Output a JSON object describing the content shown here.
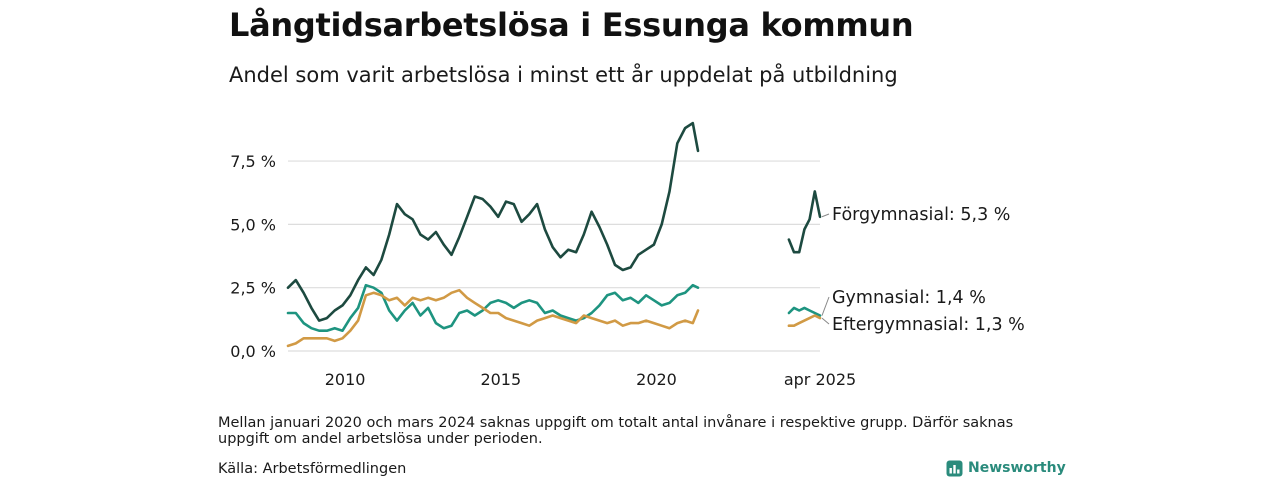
{
  "header": {
    "title": "Långtidsarbetslösa i Essunga kommun",
    "subtitle": "Andel som varit arbetslösa i minst ett år uppdelat på utbildning"
  },
  "footer": {
    "note": "Mellan januari 2020 och mars 2024 saknas uppgift om totalt antal invånare i respektive grupp. Därför saknas uppgift om andel arbetslösa under perioden.",
    "source": "Källa: Arbetsförmedlingen",
    "brand": "Newsworthy"
  },
  "colors": {
    "forgymnasial": "#1d4a40",
    "gymnasial": "#1e9480",
    "eftergymnasial": "#d19a45",
    "grid": "#dddddd",
    "brand": "#2a8b7c"
  },
  "icons": {
    "brand": "bar-chart-logo-icon"
  },
  "chart_data": {
    "type": "line",
    "x_axis": {
      "domain": [
        "2008-03",
        "2025-04"
      ],
      "ticks": [
        {
          "label": "2010",
          "value": "2010-01"
        },
        {
          "label": "2015",
          "value": "2015-01"
        },
        {
          "label": "2020",
          "value": "2020-01"
        },
        {
          "label": "apr 2025",
          "value": "2025-04"
        }
      ]
    },
    "y_axis": {
      "range": [
        0,
        9.2
      ],
      "ticks": [
        {
          "label": "0,0 %",
          "value": 0
        },
        {
          "label": "2,5 %",
          "value": 2.5
        },
        {
          "label": "5,0 %",
          "value": 5.0
        },
        {
          "label": "7,5 %",
          "value": 7.5
        }
      ],
      "grid": true
    },
    "legend": "direct labels at right end of lines",
    "series": [
      {
        "key": "forgymnasial",
        "name": "Förgymnasial",
        "end_label": "Förgymnasial: 5,3 %",
        "segments": [
          [
            [
              "2008-03",
              2.5
            ],
            [
              "2008-06",
              2.8
            ],
            [
              "2008-09",
              2.3
            ],
            [
              "2008-12",
              1.7
            ],
            [
              "2009-03",
              1.2
            ],
            [
              "2009-06",
              1.3
            ],
            [
              "2009-09",
              1.6
            ],
            [
              "2009-12",
              1.8
            ],
            [
              "2010-03",
              2.2
            ],
            [
              "2010-06",
              2.8
            ],
            [
              "2010-09",
              3.3
            ],
            [
              "2010-12",
              3.0
            ],
            [
              "2011-03",
              3.6
            ],
            [
              "2011-06",
              4.6
            ],
            [
              "2011-09",
              5.8
            ],
            [
              "2011-12",
              5.4
            ],
            [
              "2012-03",
              5.2
            ],
            [
              "2012-06",
              4.6
            ],
            [
              "2012-09",
              4.4
            ],
            [
              "2012-12",
              4.7
            ],
            [
              "2013-03",
              4.2
            ],
            [
              "2013-06",
              3.8
            ],
            [
              "2013-09",
              4.5
            ],
            [
              "2013-12",
              5.3
            ],
            [
              "2014-03",
              6.1
            ],
            [
              "2014-06",
              6.0
            ],
            [
              "2014-09",
              5.7
            ],
            [
              "2014-12",
              5.3
            ],
            [
              "2015-03",
              5.9
            ],
            [
              "2015-06",
              5.8
            ],
            [
              "2015-09",
              5.1
            ],
            [
              "2015-12",
              5.4
            ],
            [
              "2016-03",
              5.8
            ],
            [
              "2016-06",
              4.8
            ],
            [
              "2016-09",
              4.1
            ],
            [
              "2016-12",
              3.7
            ],
            [
              "2017-03",
              4.0
            ],
            [
              "2017-06",
              3.9
            ],
            [
              "2017-09",
              4.6
            ],
            [
              "2017-12",
              5.5
            ],
            [
              "2018-03",
              4.9
            ],
            [
              "2018-06",
              4.2
            ],
            [
              "2018-09",
              3.4
            ],
            [
              "2018-12",
              3.2
            ],
            [
              "2019-03",
              3.3
            ],
            [
              "2019-06",
              3.8
            ],
            [
              "2019-09",
              4.0
            ],
            [
              "2019-12",
              4.2
            ],
            [
              "2020-03",
              5.0
            ],
            [
              "2020-06",
              6.3
            ],
            [
              "2020-09",
              8.2
            ],
            [
              "2020-12",
              8.8
            ],
            [
              "2021-03",
              9.0
            ],
            [
              "2021-05",
              7.9
            ]
          ],
          [
            [
              "2024-04",
              4.4
            ],
            [
              "2024-06",
              3.9
            ],
            [
              "2024-08",
              3.9
            ],
            [
              "2024-10",
              4.8
            ],
            [
              "2024-12",
              5.2
            ],
            [
              "2025-02",
              6.3
            ],
            [
              "2025-04",
              5.3
            ]
          ]
        ]
      },
      {
        "key": "gymnasial",
        "name": "Gymnasial",
        "end_label": "Gymnasial: 1,4 %",
        "segments": [
          [
            [
              "2008-03",
              1.5
            ],
            [
              "2008-06",
              1.5
            ],
            [
              "2008-09",
              1.1
            ],
            [
              "2008-12",
              0.9
            ],
            [
              "2009-03",
              0.8
            ],
            [
              "2009-06",
              0.8
            ],
            [
              "2009-09",
              0.9
            ],
            [
              "2009-12",
              0.8
            ],
            [
              "2010-03",
              1.3
            ],
            [
              "2010-06",
              1.7
            ],
            [
              "2010-09",
              2.6
            ],
            [
              "2010-12",
              2.5
            ],
            [
              "2011-03",
              2.3
            ],
            [
              "2011-06",
              1.6
            ],
            [
              "2011-09",
              1.2
            ],
            [
              "2011-12",
              1.6
            ],
            [
              "2012-03",
              1.9
            ],
            [
              "2012-06",
              1.4
            ],
            [
              "2012-09",
              1.7
            ],
            [
              "2012-12",
              1.1
            ],
            [
              "2013-03",
              0.9
            ],
            [
              "2013-06",
              1.0
            ],
            [
              "2013-09",
              1.5
            ],
            [
              "2013-12",
              1.6
            ],
            [
              "2014-03",
              1.4
            ],
            [
              "2014-06",
              1.6
            ],
            [
              "2014-09",
              1.9
            ],
            [
              "2014-12",
              2.0
            ],
            [
              "2015-03",
              1.9
            ],
            [
              "2015-06",
              1.7
            ],
            [
              "2015-09",
              1.9
            ],
            [
              "2015-12",
              2.0
            ],
            [
              "2016-03",
              1.9
            ],
            [
              "2016-06",
              1.5
            ],
            [
              "2016-09",
              1.6
            ],
            [
              "2016-12",
              1.4
            ],
            [
              "2017-03",
              1.3
            ],
            [
              "2017-06",
              1.2
            ],
            [
              "2017-09",
              1.3
            ],
            [
              "2017-12",
              1.5
            ],
            [
              "2018-03",
              1.8
            ],
            [
              "2018-06",
              2.2
            ],
            [
              "2018-09",
              2.3
            ],
            [
              "2018-12",
              2.0
            ],
            [
              "2019-03",
              2.1
            ],
            [
              "2019-06",
              1.9
            ],
            [
              "2019-09",
              2.2
            ],
            [
              "2019-12",
              2.0
            ],
            [
              "2020-03",
              1.8
            ],
            [
              "2020-06",
              1.9
            ],
            [
              "2020-09",
              2.2
            ],
            [
              "2020-12",
              2.3
            ],
            [
              "2021-03",
              2.6
            ],
            [
              "2021-05",
              2.5
            ]
          ],
          [
            [
              "2024-04",
              1.5
            ],
            [
              "2024-06",
              1.7
            ],
            [
              "2024-08",
              1.6
            ],
            [
              "2024-10",
              1.7
            ],
            [
              "2024-12",
              1.6
            ],
            [
              "2025-02",
              1.5
            ],
            [
              "2025-04",
              1.4
            ]
          ]
        ]
      },
      {
        "key": "eftergymnasial",
        "name": "Eftergymnasial",
        "end_label": "Eftergymnasial: 1,3 %",
        "segments": [
          [
            [
              "2008-03",
              0.2
            ],
            [
              "2008-06",
              0.3
            ],
            [
              "2008-09",
              0.5
            ],
            [
              "2008-12",
              0.5
            ],
            [
              "2009-03",
              0.5
            ],
            [
              "2009-06",
              0.5
            ],
            [
              "2009-09",
              0.4
            ],
            [
              "2009-12",
              0.5
            ],
            [
              "2010-03",
              0.8
            ],
            [
              "2010-06",
              1.2
            ],
            [
              "2010-09",
              2.2
            ],
            [
              "2010-12",
              2.3
            ],
            [
              "2011-03",
              2.2
            ],
            [
              "2011-06",
              2.0
            ],
            [
              "2011-09",
              2.1
            ],
            [
              "2011-12",
              1.8
            ],
            [
              "2012-03",
              2.1
            ],
            [
              "2012-06",
              2.0
            ],
            [
              "2012-09",
              2.1
            ],
            [
              "2012-12",
              2.0
            ],
            [
              "2013-03",
              2.1
            ],
            [
              "2013-06",
              2.3
            ],
            [
              "2013-09",
              2.4
            ],
            [
              "2013-12",
              2.1
            ],
            [
              "2014-03",
              1.9
            ],
            [
              "2014-06",
              1.7
            ],
            [
              "2014-09",
              1.5
            ],
            [
              "2014-12",
              1.5
            ],
            [
              "2015-03",
              1.3
            ],
            [
              "2015-06",
              1.2
            ],
            [
              "2015-09",
              1.1
            ],
            [
              "2015-12",
              1.0
            ],
            [
              "2016-03",
              1.2
            ],
            [
              "2016-06",
              1.3
            ],
            [
              "2016-09",
              1.4
            ],
            [
              "2016-12",
              1.3
            ],
            [
              "2017-03",
              1.2
            ],
            [
              "2017-06",
              1.1
            ],
            [
              "2017-09",
              1.4
            ],
            [
              "2017-12",
              1.3
            ],
            [
              "2018-03",
              1.2
            ],
            [
              "2018-06",
              1.1
            ],
            [
              "2018-09",
              1.2
            ],
            [
              "2018-12",
              1.0
            ],
            [
              "2019-03",
              1.1
            ],
            [
              "2019-06",
              1.1
            ],
            [
              "2019-09",
              1.2
            ],
            [
              "2019-12",
              1.1
            ],
            [
              "2020-03",
              1.0
            ],
            [
              "2020-06",
              0.9
            ],
            [
              "2020-09",
              1.1
            ],
            [
              "2020-12",
              1.2
            ],
            [
              "2021-03",
              1.1
            ],
            [
              "2021-05",
              1.6
            ]
          ],
          [
            [
              "2024-04",
              1.0
            ],
            [
              "2024-06",
              1.0
            ],
            [
              "2024-08",
              1.1
            ],
            [
              "2024-10",
              1.2
            ],
            [
              "2024-12",
              1.3
            ],
            [
              "2025-02",
              1.4
            ],
            [
              "2025-04",
              1.3
            ]
          ]
        ]
      }
    ]
  }
}
